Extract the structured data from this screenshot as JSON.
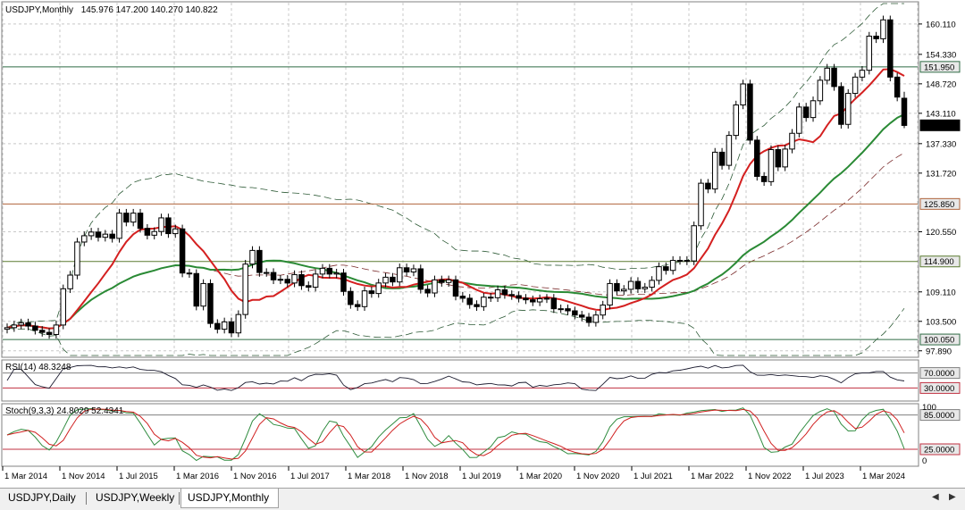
{
  "symbol_header": {
    "symbol": "USDJPY,Monthly",
    "ohlc": "145.976 147.200 140.270 140.822"
  },
  "tabs": [
    {
      "label": "USDJPY,Daily",
      "active": false
    },
    {
      "label": "USDJPY,Weekly",
      "active": false
    },
    {
      "label": "USDJPY,Monthly",
      "active": true
    }
  ],
  "price_scale_labels": [
    "160.110",
    "154.330",
    "148.720",
    "143.110",
    "137.330",
    "131.720",
    "120.550",
    "109.110",
    "103.500",
    "97.890"
  ],
  "horizontal_levels": [
    {
      "label": "151.950",
      "value": 151.95,
      "color": "#2f6b45"
    },
    {
      "label": "125.850",
      "value": 125.85,
      "color": "#b0643c"
    },
    {
      "label": "114.900",
      "value": 114.9,
      "color": "#5a7a30"
    },
    {
      "label": "100.050",
      "value": 100.05,
      "color": "#2f6b45"
    }
  ],
  "current_price_label": "140.822",
  "x_axis_labels": [
    "1 Mar 2014",
    "1 Nov 2014",
    "1 Jul 2015",
    "1 Mar 2016",
    "1 Nov 2016",
    "1 Jul 2017",
    "1 Mar 2018",
    "1 Nov 2018",
    "1 Jul 2019",
    "1 Mar 2020",
    "1 Nov 2020",
    "1 Jul 2021",
    "1 Mar 2022",
    "1 Nov 2022",
    "1 Jul 2023",
    "1 Mar 2024"
  ],
  "rsi_pane": {
    "label": "RSI(14) 48.3248",
    "levels": [
      "70.0000",
      "30.0000"
    ],
    "color": "#1a1a2e"
  },
  "stoch_pane": {
    "label": "Stoch(9,3,3) 24.8029 52.4341",
    "levels": [
      "85.0000",
      "25.0000"
    ],
    "scale": [
      "100",
      "0"
    ],
    "main_color": "#2e8b3e",
    "signal_color": "#d02020"
  },
  "colors": {
    "ma_fast": "#d42020",
    "ma_slow": "#2a8a35",
    "bands": "#2d5a36",
    "bands_mid": "#7a2a2a",
    "candle": "#000000"
  },
  "chart_data": {
    "type": "candlestick",
    "title": "USDJPY,Monthly",
    "x_start": "2014-01",
    "x_end": "2024-09",
    "ylim": [
      97.0,
      164.0
    ],
    "ohlc_monthly_close": [
      102.3,
      102.8,
      103.2,
      102.6,
      101.8,
      101.4,
      101.0,
      102.8,
      109.7,
      112.3,
      118.6,
      119.8,
      120.5,
      119.5,
      120.1,
      119.3,
      124.1,
      122.4,
      124.1,
      121.2,
      119.9,
      120.6,
      123.2,
      120.2,
      121.1,
      112.7,
      112.6,
      106.4,
      110.7,
      103.1,
      102.0,
      103.4,
      101.3,
      104.8,
      114.4,
      117.0,
      112.8,
      112.8,
      111.4,
      111.5,
      110.8,
      112.4,
      110.3,
      110.0,
      112.5,
      113.6,
      112.5,
      112.7,
      109.2,
      106.7,
      106.3,
      109.3,
      108.8,
      110.8,
      111.9,
      111.0,
      113.7,
      112.9,
      113.5,
      109.6,
      108.9,
      111.4,
      110.9,
      111.4,
      108.3,
      107.9,
      106.7,
      106.3,
      108.1,
      108.0,
      109.5,
      108.6,
      108.4,
      107.9,
      107.6,
      107.2,
      107.8,
      107.9,
      105.9,
      105.9,
      105.5,
      104.7,
      104.3,
      103.3,
      104.7,
      106.6,
      110.7,
      109.3,
      109.6,
      111.1,
      109.7,
      110.0,
      111.3,
      113.9,
      113.2,
      115.1,
      115.1,
      115.0,
      121.7,
      129.8,
      128.7,
      135.7,
      133.2,
      138.9,
      144.7,
      148.7,
      138.0,
      131.1,
      130.1,
      136.2,
      132.9,
      136.3,
      139.3,
      144.3,
      142.3,
      145.5,
      149.4,
      151.7,
      148.2,
      141.0,
      146.9,
      150.0,
      151.3,
      157.8,
      157.3,
      160.9,
      150.0,
      146.2,
      140.8
    ],
    "current": {
      "open": 145.976,
      "high": 147.2,
      "low": 140.27,
      "close": 140.822
    }
  }
}
